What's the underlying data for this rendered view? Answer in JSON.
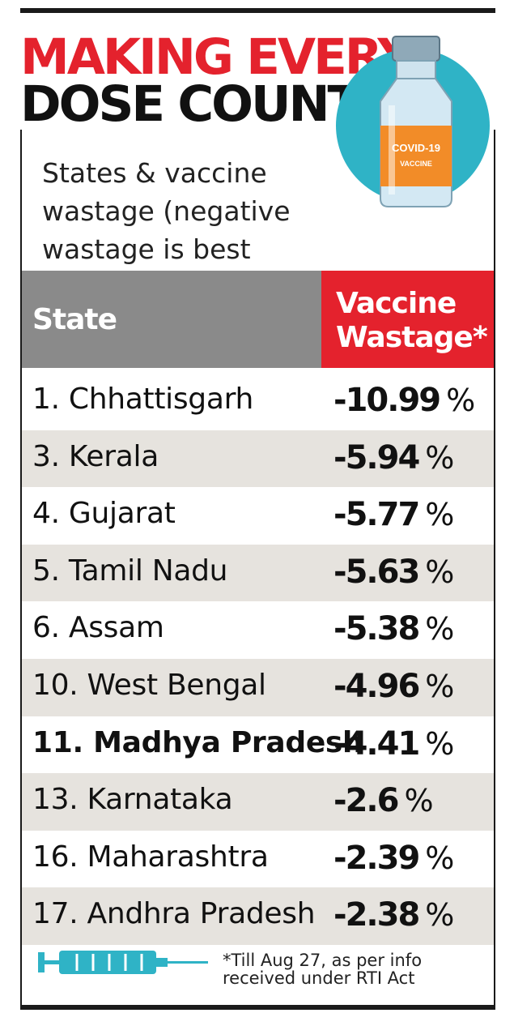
{
  "title_line1": "MAKING EVERY",
  "title_line2": "DOSE COUNT",
  "subtitle_line1": "States & vaccine",
  "subtitle_line2": "wastage (negative",
  "subtitle_line3": "wastage is best utilization)",
  "vial_label_line1": "COVID-19",
  "vial_label_line2": "VACCINE",
  "footnote_line1": "*Till Aug 27, as per info",
  "footnote_line2": "received under RTI Act",
  "colors": {
    "title_red": "#e4222d",
    "header_red": "#e4222d",
    "header_gray": "#8a8a8a",
    "row_shade": "#e6e3de",
    "vial_label_orange": "#f28c28",
    "vial_glass_blue": "#b9d9ea",
    "circle_teal": "#2fb3c6",
    "syringe_teal": "#2fb3c6"
  },
  "chart_data": {
    "type": "table",
    "columns": [
      "State",
      "Vaccine Wastage*"
    ],
    "header_state": "State",
    "header_value_line1": "Vaccine",
    "header_value_line2": "Wastage*",
    "unit": "%",
    "rows": [
      {
        "state": "1. Chhattisgarh",
        "value": "-10.99",
        "unit": "%"
      },
      {
        "state": "3. Kerala",
        "value": "-5.94",
        "unit": "%"
      },
      {
        "state": "4. Gujarat",
        "value": "-5.77",
        "unit": "%"
      },
      {
        "state": "5. Tamil Nadu",
        "value": "-5.63",
        "unit": "%"
      },
      {
        "state": "6. Assam",
        "value": "-5.38",
        "unit": "%"
      },
      {
        "state": "10. West Bengal",
        "value": "-4.96",
        "unit": "%"
      },
      {
        "state": "11. Madhya Pradesh",
        "value": "-4.41",
        "unit": "%",
        "highlight": true
      },
      {
        "state": "13. Karnataka",
        "value": "-2.6",
        "unit": "%"
      },
      {
        "state": "16. Maharashtra",
        "value": "-2.39",
        "unit": "%"
      },
      {
        "state": "17. Andhra Pradesh",
        "value": "-2.38",
        "unit": "%"
      }
    ]
  }
}
